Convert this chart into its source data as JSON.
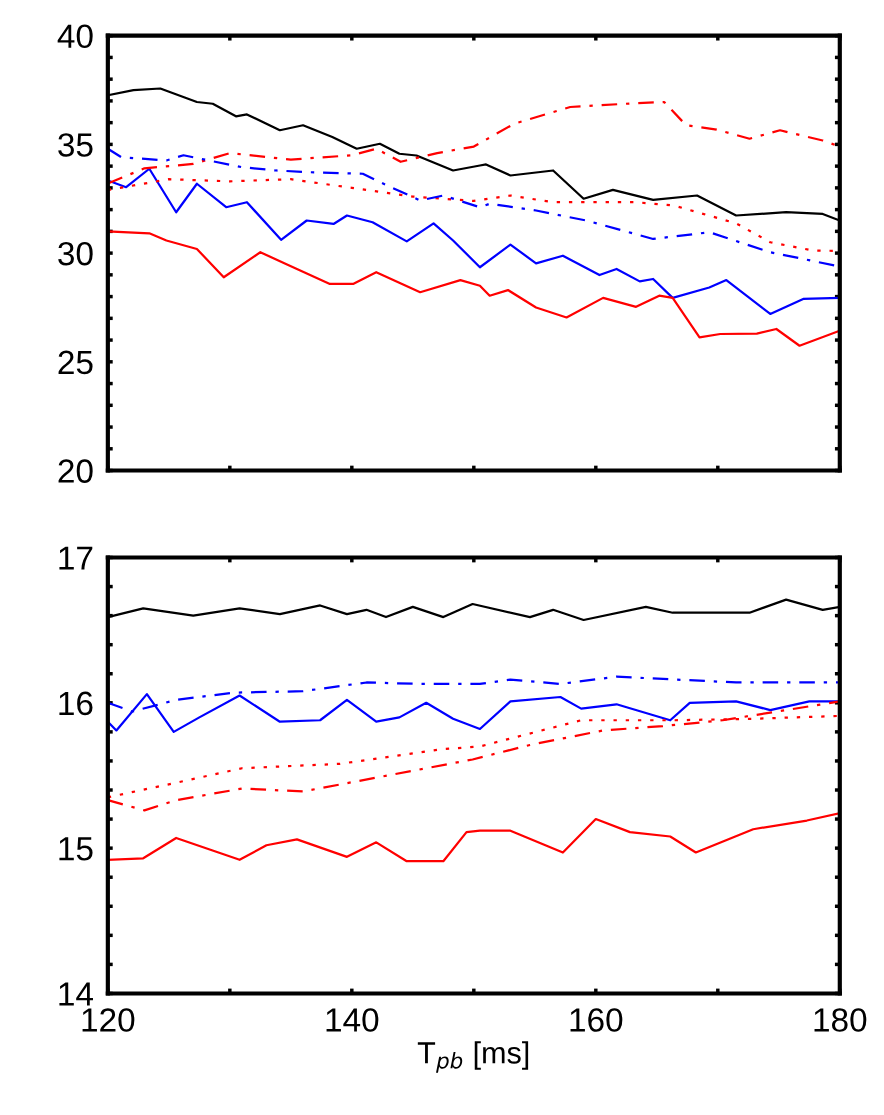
{
  "chart_data": [
    {
      "type": "line",
      "xlim": [
        120,
        180
      ],
      "ylim": [
        20,
        40
      ],
      "tick_labels": "y",
      "xticks": [
        {
          "value": 120,
          "label": null
        },
        {
          "value": 130,
          "label": null
        },
        {
          "value": 140,
          "label": null
        },
        {
          "value": 150,
          "label": null
        },
        {
          "value": 160,
          "label": null
        },
        {
          "value": 170,
          "label": null
        },
        {
          "value": 180,
          "label": null
        }
      ],
      "yticks": [
        20,
        {
          "value": 21,
          "label": null
        },
        {
          "value": 22,
          "label": null
        },
        {
          "value": 23,
          "label": null
        },
        {
          "value": 24,
          "label": null
        },
        25,
        {
          "value": 26,
          "label": null
        },
        {
          "value": 27,
          "label": null
        },
        {
          "value": 28,
          "label": null
        },
        {
          "value": 29,
          "label": null
        },
        30,
        {
          "value": 31,
          "label": null
        },
        {
          "value": 32,
          "label": null
        },
        {
          "value": 33,
          "label": null
        },
        {
          "value": 34,
          "label": null
        },
        35,
        {
          "value": 36,
          "label": null
        },
        {
          "value": 37,
          "label": null
        },
        {
          "value": 38,
          "label": null
        },
        {
          "value": 39,
          "label": null
        },
        40
      ],
      "series": [
        {
          "color": "#000000",
          "line_style": "solid",
          "x": [
            120,
            122.1,
            124.3,
            127.3,
            128.6,
            130.5,
            131.4,
            134.1,
            136.0,
            138.4,
            140.4,
            142.3,
            143.9,
            145.3,
            148.3,
            150.5,
            151.0,
            153.0,
            156.5,
            159.0,
            161.4,
            164.7,
            168.3,
            171.5,
            175.6,
            178.6,
            180
          ],
          "values": [
            37.26,
            37.5,
            37.57,
            36.95,
            36.87,
            36.29,
            36.38,
            35.65,
            35.88,
            35.34,
            34.8,
            35.03,
            34.57,
            34.49,
            33.8,
            34.03,
            34.08,
            33.57,
            33.8,
            32.5,
            32.91,
            32.45,
            32.65,
            31.73,
            31.88,
            31.8,
            31.5
          ]
        },
        {
          "color": "#0000ff",
          "line_style": "solid",
          "x": [
            120,
            121.5,
            123.4,
            125.6,
            127.3,
            129.7,
            131.4,
            134.2,
            136.3,
            138.5,
            139.6,
            141.7,
            144.5,
            146.7,
            148.3,
            150.5,
            153.0,
            155.1,
            157.3,
            160.3,
            161.7,
            163.6,
            164.7,
            166.3,
            169.3,
            170.7,
            174.3,
            177.0,
            180
          ],
          "values": [
            33.34,
            33.03,
            33.88,
            31.88,
            33.19,
            32.11,
            32.34,
            30.61,
            31.5,
            31.34,
            31.73,
            31.42,
            30.54,
            31.37,
            30.58,
            29.35,
            30.39,
            29.53,
            29.88,
            28.99,
            29.27,
            28.7,
            28.81,
            27.94,
            28.42,
            28.76,
            27.2,
            27.89,
            27.94
          ]
        },
        {
          "color": "#ff0000",
          "line_style": "solid",
          "x": [
            120,
            123.4,
            124.8,
            127.3,
            129.5,
            132.5,
            134.6,
            138.2,
            140.1,
            142.0,
            145.6,
            148.9,
            150.5,
            151.3,
            152.8,
            155.1,
            157.6,
            160.6,
            163.3,
            165.2,
            166.3,
            168.5,
            170.2,
            173.2,
            174.8,
            176.7,
            180
          ],
          "values": [
            31.0,
            30.91,
            30.58,
            30.19,
            28.89,
            30.04,
            29.5,
            28.58,
            28.58,
            29.12,
            28.2,
            28.76,
            28.5,
            28.04,
            28.3,
            27.5,
            27.04,
            27.94,
            27.53,
            28.04,
            27.94,
            26.12,
            26.28,
            26.3,
            26.51,
            25.74,
            26.43
          ]
        },
        {
          "color": "#ff0000",
          "line_style": "dashed",
          "x": [
            120,
            123,
            127,
            130,
            135,
            140,
            142,
            144,
            147,
            150,
            153.3,
            157.9,
            162.8,
            165.6,
            167.4,
            169.9,
            172.6,
            175.1,
            178.6,
            180
          ],
          "values": [
            33.2,
            33.9,
            34.1,
            34.6,
            34.3,
            34.5,
            34.8,
            34.2,
            34.6,
            34.9,
            35.95,
            36.72,
            36.88,
            36.95,
            35.88,
            35.68,
            35.26,
            35.65,
            35.18,
            34.9
          ]
        },
        {
          "color": "#ff0000",
          "line_style": "dotted",
          "x": [
            120,
            125,
            130,
            135,
            140,
            145,
            150,
            153,
            156.5,
            163.3,
            166.4,
            171.5,
            174.3,
            177.8,
            180
          ],
          "values": [
            32.9,
            33.4,
            33.3,
            33.4,
            33.0,
            32.6,
            32.4,
            32.65,
            32.34,
            32.34,
            32.19,
            31.37,
            30.5,
            30.12,
            30.1
          ]
        },
        {
          "color": "#0000ff",
          "line_style": "dashed",
          "x": [
            120,
            121.1,
            124.8,
            126.2,
            131.0,
            133.8,
            136.6,
            140.9,
            142.6,
            145.6,
            147.5,
            150.5,
            151.3,
            155.1,
            159.2,
            164.7,
            169.3,
            174.3,
            177.0,
            180
          ],
          "values": [
            34.8,
            34.41,
            34.26,
            34.5,
            33.95,
            33.8,
            33.72,
            33.65,
            33.19,
            32.42,
            32.65,
            32.11,
            32.27,
            31.96,
            31.5,
            30.65,
            30.96,
            30.04,
            29.73,
            29.38
          ]
        }
      ]
    },
    {
      "type": "line",
      "xlim": [
        120,
        180
      ],
      "ylim": [
        14,
        17
      ],
      "xlabel": "T$_{pb}$ [ms]",
      "xticks": [
        120,
        {
          "value": 130,
          "label": null
        },
        140,
        {
          "value": 150,
          "label": null
        },
        160,
        {
          "value": 170,
          "label": null
        },
        180
      ],
      "yticks": [
        14,
        {
          "value": 14.2,
          "label": null
        },
        {
          "value": 14.4,
          "label": null
        },
        {
          "value": 14.6,
          "label": null
        },
        {
          "value": 14.8,
          "label": null
        },
        15,
        {
          "value": 15.2,
          "label": null
        },
        {
          "value": 15.4,
          "label": null
        },
        {
          "value": 15.6,
          "label": null
        },
        {
          "value": 15.8,
          "label": null
        },
        16,
        {
          "value": 16.2,
          "label": null
        },
        {
          "value": 16.4,
          "label": null
        },
        {
          "value": 16.6,
          "label": null
        },
        {
          "value": 16.8,
          "label": null
        },
        17
      ],
      "series": [
        {
          "color": "#000000",
          "line_style": "solid",
          "x": [
            120,
            122.9,
            127.0,
            130.8,
            134.1,
            137.4,
            139.6,
            141.2,
            142.8,
            145.0,
            147.5,
            149.9,
            154.6,
            156.5,
            159.0,
            164.1,
            166.3,
            172.6,
            175.6,
            178.6,
            180
          ],
          "values": [
            16.59,
            16.65,
            16.6,
            16.65,
            16.61,
            16.67,
            16.61,
            16.64,
            16.59,
            16.66,
            16.59,
            16.68,
            16.59,
            16.64,
            16.57,
            16.66,
            16.62,
            16.62,
            16.71,
            16.64,
            16.66
          ]
        },
        {
          "color": "#0000ff",
          "line_style": "solid",
          "x": [
            120,
            120.7,
            123.2,
            125.4,
            127.5,
            130.8,
            134.1,
            137.4,
            139.6,
            142.0,
            143.9,
            146.1,
            148.3,
            150.5,
            153.0,
            157.1,
            158.8,
            161.7,
            166.1,
            167.7,
            171.5,
            174.3,
            177.5,
            180
          ],
          "values": [
            15.87,
            15.81,
            16.06,
            15.8,
            15.9,
            16.05,
            15.87,
            15.88,
            16.02,
            15.87,
            15.9,
            16.0,
            15.89,
            15.82,
            16.01,
            16.04,
            15.96,
            15.99,
            15.88,
            16.0,
            16.01,
            15.95,
            16.01,
            16.01
          ]
        },
        {
          "color": "#ff0000",
          "line_style": "solid",
          "x": [
            120,
            122.9,
            125.6,
            130.8,
            133.0,
            135.5,
            139.6,
            142.0,
            144.5,
            147.5,
            149.4,
            150.5,
            153.0,
            157.3,
            160.0,
            162.8,
            166.1,
            168.2,
            172.9,
            177.3,
            180
          ],
          "values": [
            14.92,
            14.93,
            15.07,
            14.92,
            15.02,
            15.06,
            14.94,
            15.04,
            14.91,
            14.91,
            15.11,
            15.12,
            15.12,
            14.97,
            15.2,
            15.11,
            15.08,
            14.97,
            15.13,
            15.19,
            15.24
          ]
        },
        {
          "color": "#ff0000",
          "line_style": "dashed",
          "x": [
            120,
            123,
            125.6,
            131,
            136,
            142.3,
            149.9,
            154.6,
            160.6,
            165.5,
            170.4,
            175.6,
            180
          ],
          "values": [
            15.33,
            15.26,
            15.33,
            15.41,
            15.39,
            15.49,
            15.61,
            15.71,
            15.81,
            15.84,
            15.88,
            15.95,
            16.01
          ]
        },
        {
          "color": "#ff0000",
          "line_style": "dotted",
          "x": [
            120,
            125.6,
            131,
            139,
            147.3,
            150.5,
            158.8,
            166.4,
            172.8,
            180
          ],
          "values": [
            15.35,
            15.45,
            15.55,
            15.58,
            15.68,
            15.7,
            15.88,
            15.88,
            15.89,
            15.91
          ]
        },
        {
          "color": "#0000ff",
          "line_style": "dashed",
          "x": [
            120,
            122,
            125.6,
            130.3,
            136.0,
            141.2,
            145.6,
            150.5,
            153.0,
            157.1,
            161.7,
            166.6,
            171.5,
            177.0,
            180
          ],
          "values": [
            16.0,
            15.94,
            16.02,
            16.07,
            16.08,
            16.14,
            16.13,
            16.13,
            16.16,
            16.13,
            16.18,
            16.16,
            16.14,
            16.14,
            16.14
          ]
        }
      ]
    }
  ]
}
